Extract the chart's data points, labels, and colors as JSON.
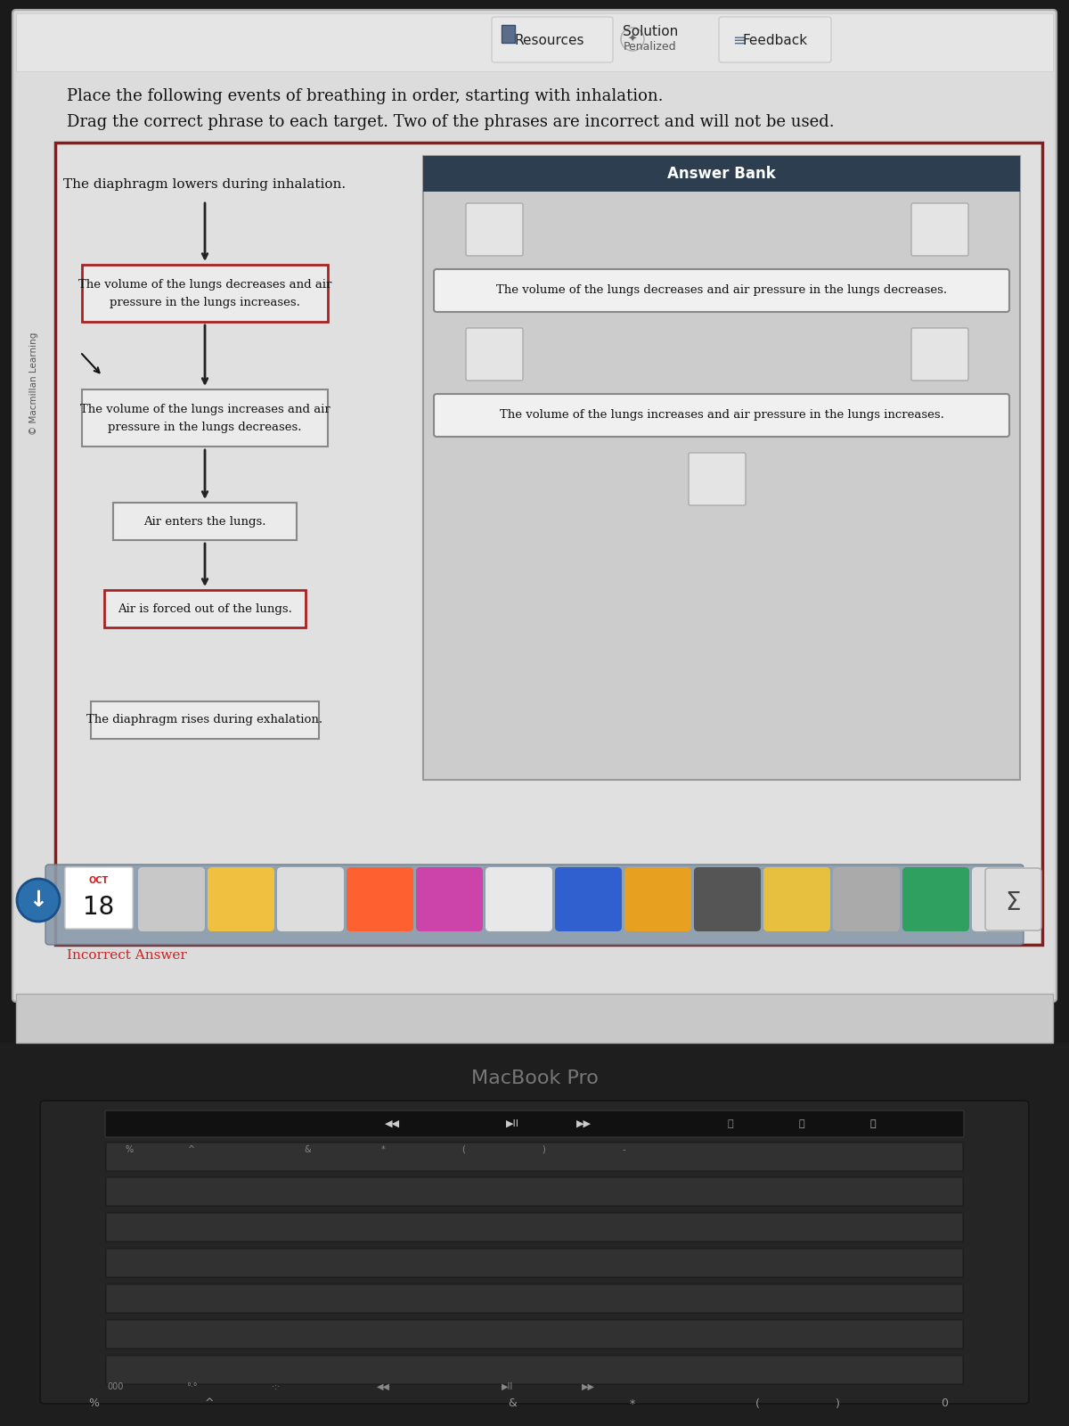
{
  "bg_outer": "#1a1a1a",
  "bg_screen": "#d0d0d0",
  "bg_content": "#e2e2e2",
  "border_color": "#8b1a1a",
  "answer_bank_header_bg": "#2c3e50",
  "answer_bank_bg": "#cccccc",
  "instructions_line1": "Place the following events of breathing in order, starting with inhalation.",
  "instructions_line2": "Drag the correct phrase to each target. Two of the phrases are incorrect and will not be used.",
  "copyright": "© Macmillan Learning",
  "resources_label": "Resources",
  "solution_label": "Solution",
  "penalized_label": "Penalized",
  "feedback_label": "Feedback",
  "flow_item0": "The diaphragm lowers during inhalation.",
  "flow_item1_line1": "The volume of the lungs decreases and air",
  "flow_item1_line2": "pressure in the lungs increases.",
  "flow_item2_line1": "The volume of the lungs increases and air",
  "flow_item2_line2": "pressure in the lungs decreases.",
  "flow_item3": "Air enters the lungs.",
  "flow_item4": "Air is forced out of the lungs.",
  "flow_item5": "The diaphragm rises during exhalation.",
  "answer_bank_item1": "The volume of the lungs decreases and air pressure in the lungs decreases.",
  "answer_bank_item2": "The volume of the lungs increases and air pressure in the lungs increases.",
  "incorrect_answer_label": "Incorrect Answer",
  "macbook_label": "MacBook Pro",
  "arrow_color": "#222222",
  "box_bg": "#ebebeb",
  "incorrect_border": "#aa2222",
  "correct_border": "#888888",
  "dock_bg": "#8a9aaa",
  "kb_bg": "#252525",
  "screen_bg": "#d8d8d8"
}
